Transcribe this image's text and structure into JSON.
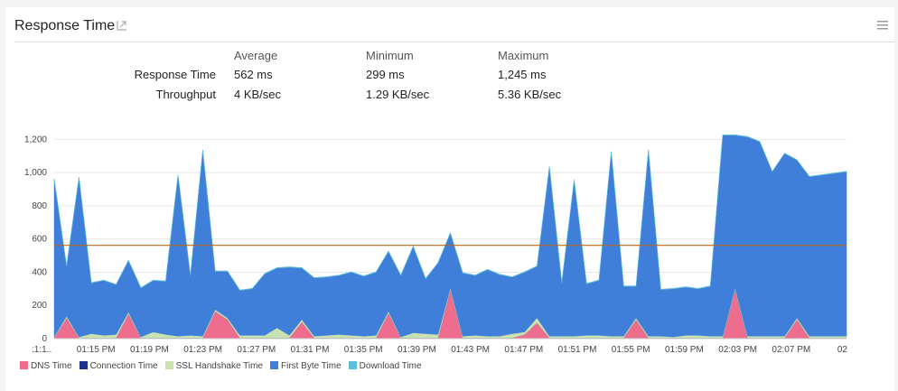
{
  "panel": {
    "title": "Response Time",
    "icons": [
      "expand-chart-icon",
      "menu-icon"
    ]
  },
  "stats": {
    "columns": [
      "Average",
      "Minimum",
      "Maximum"
    ],
    "rows": [
      {
        "label": "Response Time",
        "values": [
          "562 ms",
          "299 ms",
          "1,245 ms"
        ]
      },
      {
        "label": "Throughput",
        "values": [
          "4 KB/sec",
          "1.29 KB/sec",
          "5.36 KB/sec"
        ]
      }
    ]
  },
  "chart_data": {
    "type": "area",
    "stacked": true,
    "ylim": [
      0,
      1300
    ],
    "yticks": [
      0,
      200,
      400,
      600,
      800,
      1000,
      1200
    ],
    "ytick_labels": [
      "0",
      "200",
      "400",
      "600",
      "800",
      "1,000",
      "1,200"
    ],
    "xtick_labels": [
      ":1:1..",
      "01:15 PM",
      "01:19 PM",
      "01:23 PM",
      "01:27 PM",
      "01:31 PM",
      "01:35 PM",
      "01:39 PM",
      "01:43 PM",
      "01:47 PM",
      "01:51 PM",
      "01:55 PM",
      "01:59 PM",
      "02:03 PM",
      "02:07 PM",
      "02"
    ],
    "average_line": 562,
    "grid": true,
    "series": [
      {
        "name": "DNS Time",
        "color": "#ee6d8f",
        "values": [
          5,
          125,
          5,
          5,
          5,
          5,
          150,
          5,
          5,
          5,
          5,
          5,
          5,
          165,
          115,
          5,
          5,
          5,
          5,
          5,
          100,
          5,
          5,
          5,
          5,
          5,
          5,
          155,
          5,
          5,
          5,
          5,
          295,
          5,
          5,
          5,
          5,
          5,
          25,
          95,
          5,
          5,
          5,
          5,
          5,
          5,
          5,
          115,
          5,
          5,
          5,
          5,
          5,
          5,
          5,
          295,
          5,
          5,
          5,
          5,
          115,
          5,
          5,
          5,
          5
        ]
      },
      {
        "name": "Connection Time",
        "color": "#1c2f8c",
        "values": [
          0,
          0,
          0,
          0,
          0,
          0,
          0,
          0,
          0,
          0,
          0,
          0,
          0,
          0,
          0,
          0,
          0,
          0,
          0,
          0,
          0,
          0,
          0,
          0,
          0,
          0,
          0,
          0,
          0,
          0,
          0,
          0,
          0,
          0,
          0,
          0,
          0,
          0,
          0,
          0,
          0,
          0,
          0,
          0,
          0,
          0,
          0,
          0,
          0,
          0,
          0,
          0,
          0,
          0,
          0,
          0,
          0,
          0,
          0,
          0,
          0,
          0,
          0,
          0,
          0
        ]
      },
      {
        "name": "SSL Handshake Time",
        "color": "#c9e3b0",
        "values": [
          5,
          10,
          5,
          25,
          15,
          20,
          10,
          5,
          35,
          20,
          10,
          15,
          10,
          10,
          10,
          15,
          15,
          15,
          60,
          15,
          15,
          10,
          15,
          20,
          15,
          10,
          15,
          10,
          5,
          30,
          25,
          20,
          10,
          10,
          15,
          10,
          10,
          25,
          15,
          30,
          10,
          10,
          10,
          15,
          15,
          10,
          10,
          10,
          10,
          10,
          5,
          15,
          15,
          10,
          10,
          10,
          10,
          10,
          10,
          10,
          10,
          10,
          10,
          10,
          10
        ]
      },
      {
        "name": "First Byte Time",
        "color": "#3f7fd9",
        "values": [
          950,
          300,
          960,
          305,
          330,
          300,
          310,
          295,
          310,
          320,
          970,
          360,
          1120,
          230,
          280,
          270,
          280,
          370,
          360,
          410,
          310,
          350,
          350,
          355,
          380,
          360,
          380,
          360,
          370,
          520,
          330,
          430,
          330,
          380,
          360,
          400,
          370,
          340,
          360,
          310,
          1020,
          320,
          940,
          310,
          330,
          1110,
          300,
          190,
          1120,
          280,
          290,
          290,
          280,
          300,
          1210,
          920,
          1200,
          1170,
          990,
          1100,
          950,
          960,
          970,
          980,
          990
        ]
      },
      {
        "name": "Download Time",
        "color": "#5bbfd9",
        "values": [
          3,
          3,
          3,
          3,
          3,
          3,
          3,
          3,
          3,
          3,
          3,
          3,
          3,
          3,
          3,
          3,
          3,
          3,
          3,
          3,
          3,
          3,
          3,
          3,
          3,
          3,
          3,
          3,
          3,
          3,
          3,
          3,
          3,
          3,
          3,
          3,
          3,
          3,
          3,
          3,
          3,
          3,
          3,
          3,
          3,
          3,
          3,
          3,
          3,
          3,
          3,
          3,
          3,
          3,
          3,
          3,
          3,
          3,
          3,
          3,
          3,
          3,
          3,
          3,
          3
        ]
      }
    ]
  }
}
